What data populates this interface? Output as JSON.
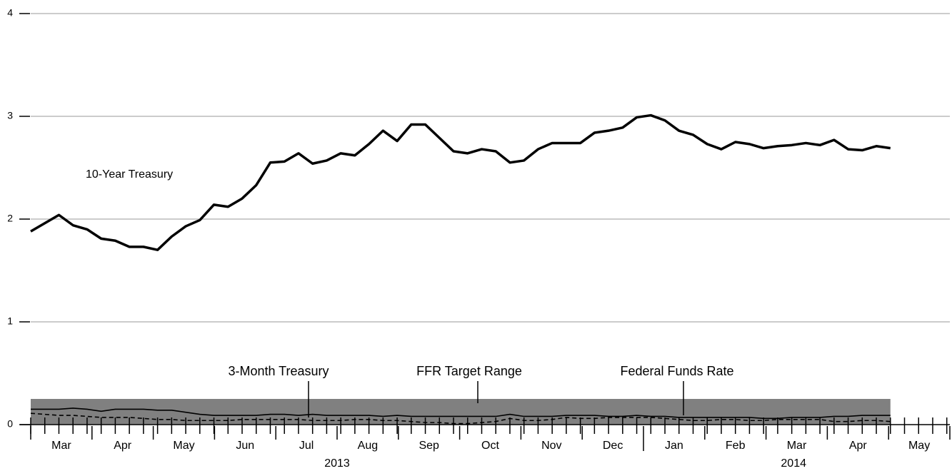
{
  "chart_data": {
    "type": "line",
    "x": [
      0,
      0.23,
      0.46,
      0.69,
      0.92,
      1.15,
      1.38,
      1.61,
      1.84,
      2.07,
      2.3,
      2.53,
      2.76,
      2.99,
      3.22,
      3.45,
      3.68,
      3.91,
      4.14,
      4.37,
      4.6,
      4.83,
      5.06,
      5.29,
      5.52,
      5.75,
      5.98,
      6.21,
      6.44,
      6.67,
      6.9,
      7.13,
      7.36,
      7.59,
      7.82,
      8.05,
      8.28,
      8.51,
      8.74,
      8.97,
      9.2,
      9.43,
      9.66,
      9.89,
      10.12,
      10.35,
      10.58,
      10.81,
      11.04,
      11.27,
      11.5,
      11.73,
      11.96,
      12.19,
      12.42,
      12.65,
      12.88,
      13.11,
      13.34,
      13.57,
      13.8,
      14.03
    ],
    "series": [
      {
        "name": "10-Year Treasury",
        "color": "#000000",
        "dashed": false,
        "values": [
          1.88,
          1.96,
          2.04,
          1.94,
          1.9,
          1.81,
          1.79,
          1.73,
          1.73,
          1.7,
          1.83,
          1.93,
          1.99,
          2.14,
          2.12,
          2.2,
          2.33,
          2.55,
          2.56,
          2.64,
          2.54,
          2.57,
          2.64,
          2.62,
          2.73,
          2.86,
          2.76,
          2.92,
          2.92,
          2.79,
          2.66,
          2.64,
          2.68,
          2.66,
          2.55,
          2.57,
          2.68,
          2.74,
          2.74,
          2.74,
          2.84,
          2.86,
          2.89,
          2.99,
          3.01,
          2.96,
          2.86,
          2.82,
          2.73,
          2.68,
          2.75,
          2.73,
          2.69,
          2.71,
          2.72,
          2.74,
          2.72,
          2.77,
          2.68,
          2.67,
          2.71,
          2.69
        ]
      },
      {
        "name": "3-Month Treasury",
        "color": "#000000",
        "dashed": true,
        "values": [
          0.11,
          0.1,
          0.09,
          0.09,
          0.08,
          0.07,
          0.07,
          0.07,
          0.06,
          0.05,
          0.05,
          0.04,
          0.04,
          0.04,
          0.04,
          0.05,
          0.05,
          0.05,
          0.05,
          0.05,
          0.04,
          0.04,
          0.04,
          0.05,
          0.05,
          0.04,
          0.04,
          0.03,
          0.02,
          0.02,
          0.01,
          0.01,
          0.02,
          0.03,
          0.06,
          0.04,
          0.04,
          0.05,
          0.07,
          0.06,
          0.06,
          0.07,
          0.07,
          0.07,
          0.07,
          0.06,
          0.05,
          0.04,
          0.04,
          0.05,
          0.05,
          0.04,
          0.04,
          0.05,
          0.05,
          0.05,
          0.05,
          0.03,
          0.03,
          0.04,
          0.04,
          0.03
        ]
      },
      {
        "name": "Federal Funds Rate",
        "color": "#000000",
        "dashed": false,
        "values": [
          0.15,
          0.15,
          0.15,
          0.16,
          0.15,
          0.13,
          0.15,
          0.15,
          0.15,
          0.14,
          0.14,
          0.12,
          0.1,
          0.09,
          0.09,
          0.09,
          0.09,
          0.1,
          0.1,
          0.09,
          0.1,
          0.09,
          0.09,
          0.09,
          0.09,
          0.08,
          0.09,
          0.08,
          0.08,
          0.08,
          0.08,
          0.08,
          0.08,
          0.08,
          0.1,
          0.08,
          0.08,
          0.08,
          0.09,
          0.09,
          0.09,
          0.08,
          0.08,
          0.09,
          0.08,
          0.08,
          0.07,
          0.07,
          0.07,
          0.07,
          0.07,
          0.07,
          0.06,
          0.06,
          0.07,
          0.07,
          0.07,
          0.08,
          0.08,
          0.09,
          0.09,
          0.09
        ]
      }
    ],
    "target_range": {
      "name": "FFR Target Range",
      "lower": 0,
      "upper": 0.25,
      "color": "#808080"
    },
    "xlim": [
      0,
      15
    ],
    "xticks": [
      0,
      1,
      2,
      3,
      4,
      5,
      6,
      7,
      8,
      9,
      10,
      11,
      12,
      13,
      14,
      15
    ],
    "month_labels": [
      {
        "value": 0.5,
        "label": "Mar"
      },
      {
        "value": 1.5,
        "label": "Apr"
      },
      {
        "value": 2.5,
        "label": "May"
      },
      {
        "value": 3.5,
        "label": "Jun"
      },
      {
        "value": 4.5,
        "label": "Jul"
      },
      {
        "value": 5.5,
        "label": "Aug"
      },
      {
        "value": 6.5,
        "label": "Sep"
      },
      {
        "value": 7.5,
        "label": "Oct"
      },
      {
        "value": 8.5,
        "label": "Nov"
      },
      {
        "value": 9.5,
        "label": "Dec"
      },
      {
        "value": 10.5,
        "label": "Jan"
      },
      {
        "value": 11.5,
        "label": "Feb"
      },
      {
        "value": 12.5,
        "label": "Mar"
      },
      {
        "value": 13.5,
        "label": "Apr"
      },
      {
        "value": 14.5,
        "label": "May"
      }
    ],
    "year_labels": [
      {
        "value": 5,
        "label": "2013"
      },
      {
        "value": 12.45,
        "label": "2014"
      }
    ],
    "year_boundary": 10,
    "ylim": [
      0,
      4
    ],
    "yticks": [
      0,
      1,
      2,
      3,
      4
    ],
    "grid": true
  }
}
